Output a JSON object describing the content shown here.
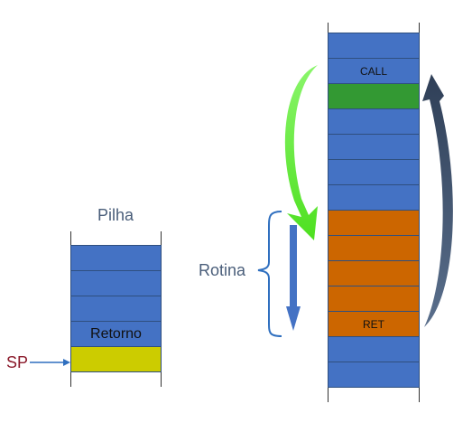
{
  "pilha": {
    "title": "Pilha",
    "retorno_label": "Retorno",
    "sp_label": "SP"
  },
  "memory": {
    "call_label": "CALL",
    "ret_label": "RET"
  },
  "rotina_label": "Rotina",
  "colors": {
    "blue": "#4472c4",
    "green": "#339933",
    "orange": "#cc6600",
    "yellow": "#cccc00",
    "call_arrow": "#66ee44",
    "ret_arrow": "#445670",
    "flow_arrow": "#4472c4"
  }
}
